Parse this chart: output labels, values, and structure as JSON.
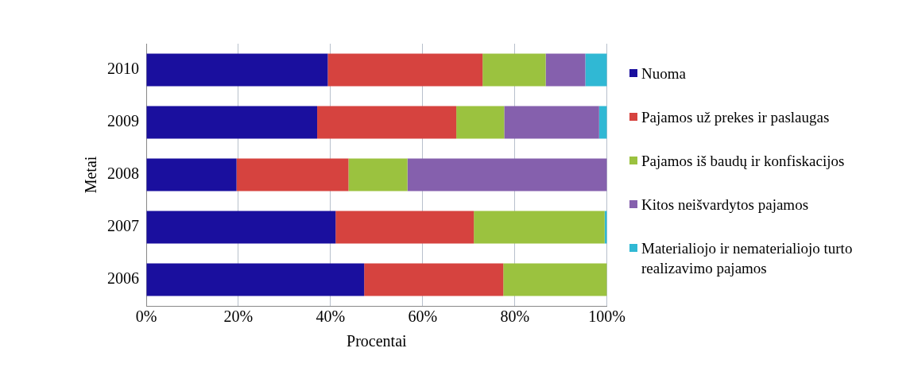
{
  "chart_data": {
    "type": "bar",
    "orientation": "horizontal",
    "stacked": true,
    "xlabel": "Procentai",
    "ylabel": "Metai",
    "categories": [
      "2010",
      "2009",
      "2008",
      "2007",
      "2006"
    ],
    "series": [
      {
        "name": "Nuoma",
        "color": "#1a0f9e",
        "values": [
          39.4,
          37.1,
          19.6,
          41.1,
          47.3
        ]
      },
      {
        "name": "Pajamos už prekes ir paslaugas",
        "color": "#d6433f",
        "values": [
          33.6,
          30.2,
          24.3,
          30.0,
          30.2
        ]
      },
      {
        "name": "Pajamos iš baudų ir konfiskacijos",
        "color": "#9bc23f",
        "values": [
          13.7,
          10.4,
          12.8,
          28.4,
          22.5
        ]
      },
      {
        "name": "Kitos neišvardytos pajamos",
        "color": "#8560ad",
        "values": [
          8.6,
          20.6,
          43.3,
          0,
          0
        ]
      },
      {
        "name": "Materialiojo ir nematerialiojo turto realizavimo pajamos",
        "color": "#30b8d4",
        "values": [
          4.7,
          1.7,
          0,
          0.5,
          0
        ]
      }
    ],
    "xlim": [
      0,
      100
    ],
    "xticks": [
      {
        "value": 0,
        "label": "0%"
      },
      {
        "value": 20,
        "label": "20%"
      },
      {
        "value": 40,
        "label": "40%"
      },
      {
        "value": 60,
        "label": "60%"
      },
      {
        "value": 80,
        "label": "80%"
      },
      {
        "value": 100,
        "label": "100%"
      }
    ],
    "grid": "x",
    "legend": "right"
  }
}
